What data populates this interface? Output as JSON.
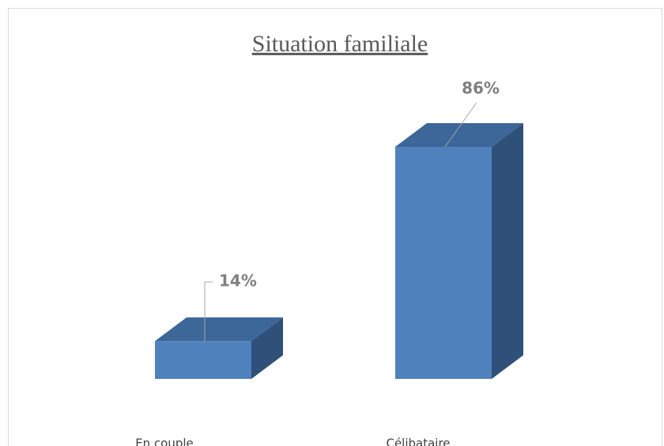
{
  "chart_data": {
    "type": "bar3d",
    "title": "Situation familiale",
    "categories": [
      "En couple",
      "Célibataire"
    ],
    "values": [
      14,
      86
    ],
    "value_labels": [
      "14%",
      "86%"
    ],
    "colors": {
      "front": "#4f81bd",
      "top": "#3d6699",
      "side": "#2f5079"
    }
  }
}
